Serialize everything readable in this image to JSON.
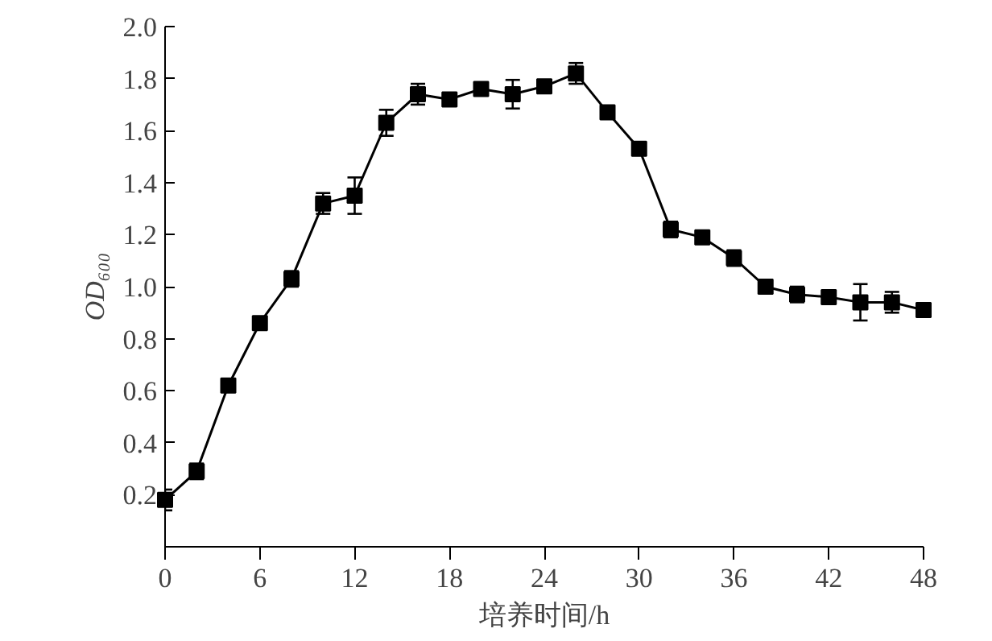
{
  "chart_data": {
    "type": "line",
    "xlabel": "培养时间/h",
    "ylabel": "OD₆₀₀",
    "x": [
      0,
      2,
      4,
      6,
      8,
      10,
      12,
      14,
      16,
      18,
      20,
      22,
      24,
      26,
      28,
      30,
      32,
      34,
      36,
      38,
      40,
      42,
      44,
      46,
      48
    ],
    "series": [
      {
        "color": "#000000",
        "values": [
          0.18,
          0.29,
          0.62,
          0.86,
          1.03,
          1.32,
          1.35,
          1.63,
          1.74,
          1.72,
          1.76,
          1.74,
          1.77,
          1.82,
          1.67,
          1.53,
          1.22,
          1.19,
          1.11,
          1.0,
          0.97,
          0.96,
          0.94,
          0.94,
          0.91
        ],
        "errors": [
          0.04,
          0.03,
          null,
          null,
          0.03,
          0.04,
          0.07,
          0.05,
          0.04,
          null,
          null,
          0.055,
          null,
          0.04,
          0.02,
          null,
          0.03,
          null,
          0.03,
          null,
          0.03,
          0.02,
          0.07,
          0.04,
          null
        ]
      }
    ],
    "xlim": [
      0,
      48
    ],
    "ylim": [
      0,
      2.0
    ],
    "xticks": [
      0,
      6,
      12,
      18,
      24,
      30,
      36,
      42,
      48
    ],
    "yticks": [
      0.2,
      0.4,
      0.6,
      0.8,
      {
        "value": 1,
        "label": "1.0"
      },
      1.2,
      1.4,
      1.6,
      1.8,
      {
        "value": 2,
        "label": "2.0"
      }
    ],
    "marker": "square",
    "line_style": "solid"
  }
}
